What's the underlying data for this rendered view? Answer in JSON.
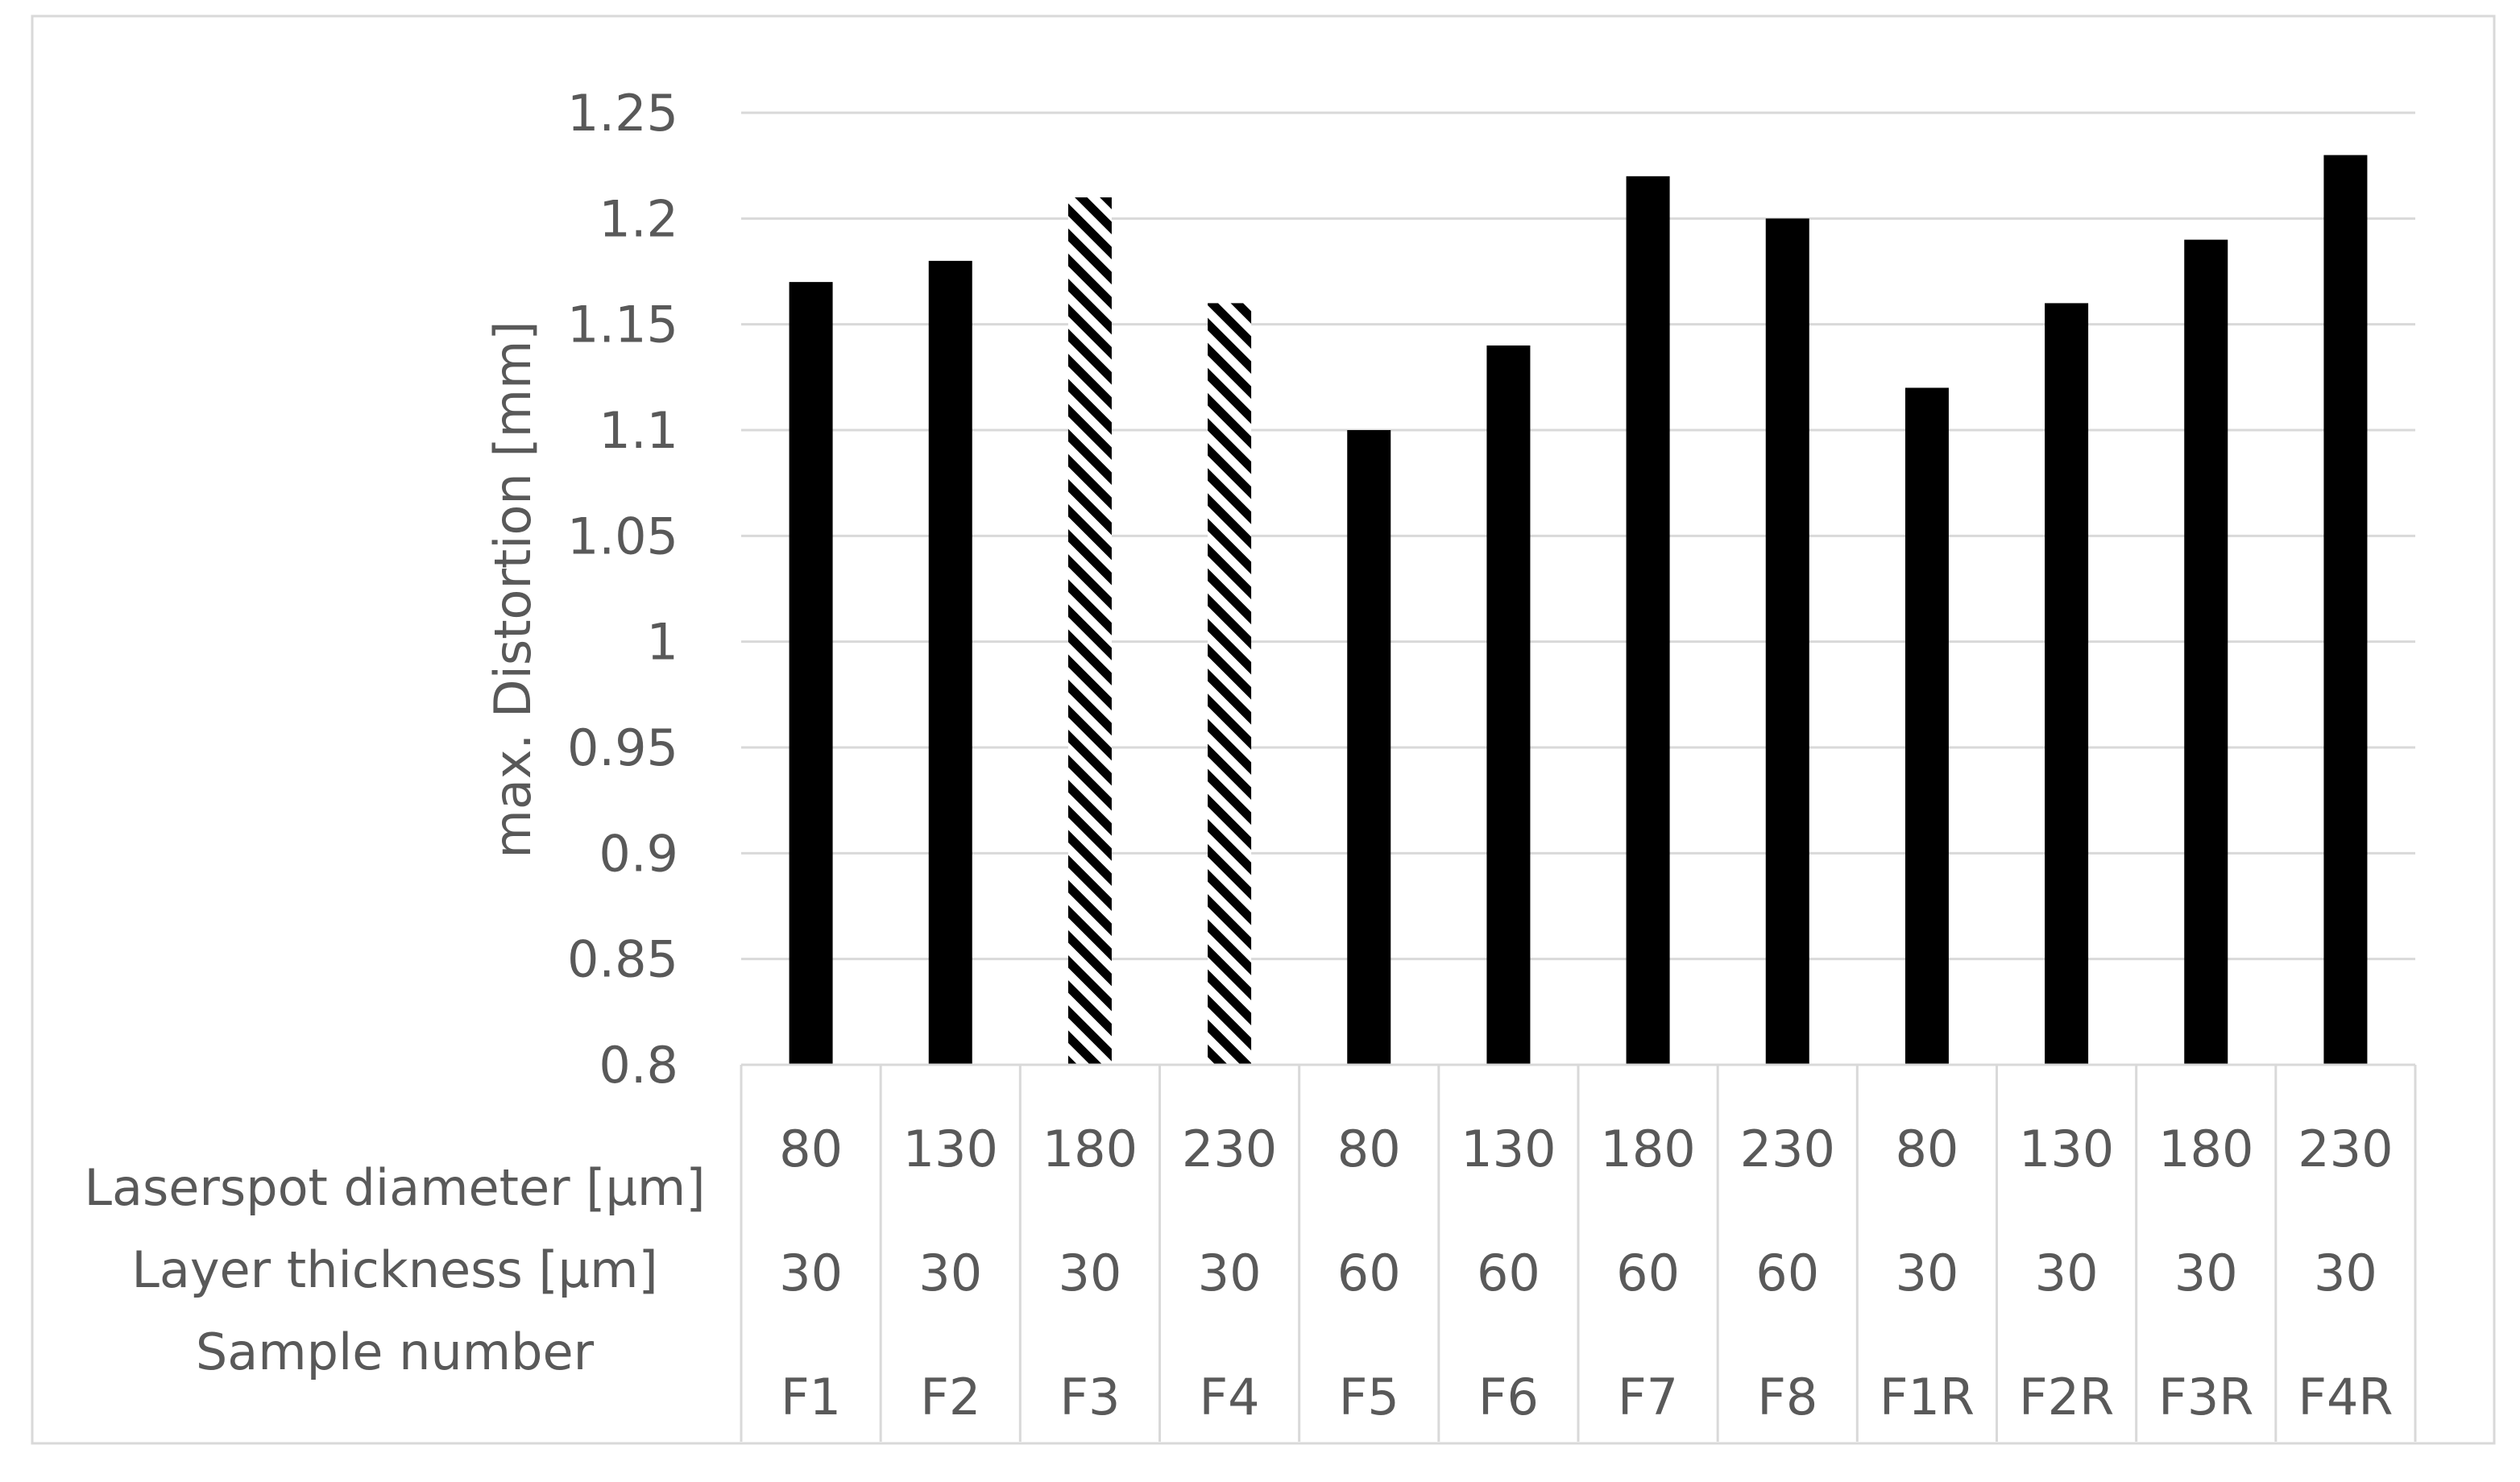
{
  "chart_data": {
    "type": "bar",
    "title": "",
    "ylabel": "max. Distortion [mm]",
    "ylim": [
      0.8,
      1.25
    ],
    "y_ticks": [
      "0.8",
      "0.85",
      "0.9",
      "0.95",
      "1",
      "1.05",
      "1.1",
      "1.15",
      "1.2",
      "1.25"
    ],
    "grid": true,
    "legend": "none",
    "row_labels": {
      "laserspot": "Laserspot diameter [µm]",
      "layer": "Layer thickness [µm]",
      "sample": "Sample number"
    },
    "laserspot_diameter": [
      "80",
      "130",
      "180",
      "230",
      "80",
      "130",
      "180",
      "230",
      "80",
      "130",
      "180",
      "230"
    ],
    "layer_thickness": [
      "30",
      "30",
      "30",
      "30",
      "60",
      "60",
      "60",
      "60",
      "30",
      "30",
      "30",
      "30"
    ],
    "categories": [
      "F1",
      "F2",
      "F3",
      "F4",
      "F5",
      "F6",
      "F7",
      "F8",
      "F1R",
      "F2R",
      "F3R",
      "F4R"
    ],
    "values": [
      1.17,
      1.18,
      1.21,
      1.16,
      1.1,
      1.14,
      1.22,
      1.2,
      1.12,
      1.16,
      1.19,
      1.23
    ],
    "bar_fill": [
      "solid",
      "solid",
      "hatched",
      "hatched",
      "solid",
      "solid",
      "solid",
      "solid",
      "solid",
      "solid",
      "solid",
      "solid"
    ],
    "colors": {
      "bar": "#000000",
      "grid": "#d9d9d9",
      "text": "#595959",
      "frame": "#d9d9d9"
    }
  }
}
